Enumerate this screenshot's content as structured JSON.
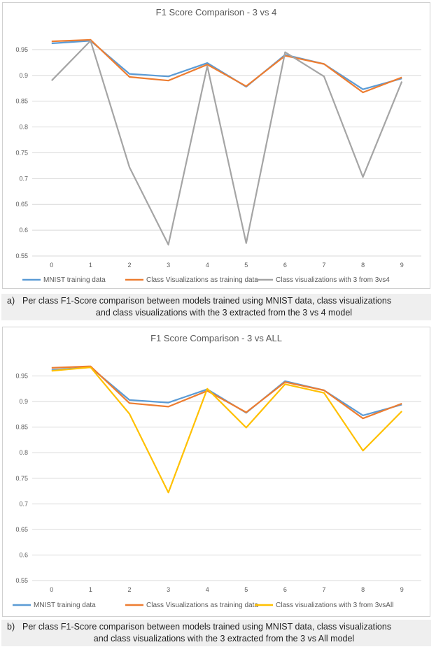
{
  "chart_data": [
    {
      "type": "line",
      "title": "F1 Score Comparison - 3 vs 4",
      "categories": [
        "0",
        "1",
        "2",
        "3",
        "4",
        "5",
        "6",
        "7",
        "8",
        "9"
      ],
      "ylim": [
        0.55,
        1.0
      ],
      "yticks": [
        "0.55",
        "0.6",
        "0.65",
        "0.7",
        "0.75",
        "0.8",
        "0.85",
        "0.9",
        "0.95"
      ],
      "series": [
        {
          "name": "MNIST training data",
          "color": "#5b9bd5",
          "values": [
            0.962,
            0.967,
            0.903,
            0.898,
            0.924,
            0.878,
            0.94,
            0.922,
            0.873,
            0.894
          ]
        },
        {
          "name": "Class Visualizations as training data",
          "color": "#ed7d31",
          "values": [
            0.966,
            0.969,
            0.897,
            0.89,
            0.921,
            0.879,
            0.938,
            0.922,
            0.867,
            0.896
          ]
        },
        {
          "name": "Class visualizations with 3 from 3vs4",
          "color": "#a5a5a5",
          "values": [
            0.89,
            0.967,
            0.722,
            0.572,
            0.918,
            0.575,
            0.945,
            0.898,
            0.703,
            0.888
          ]
        }
      ],
      "caption_prefix": "a)",
      "caption_line1": "Per class F1-Score comparison between models trained using MNIST data, class visualizations",
      "caption_line2": "and class visualizations with the 3 extracted from the 3 vs 4 model"
    },
    {
      "type": "line",
      "title": "F1 Score Comparison - 3 vs ALL",
      "categories": [
        "0",
        "1",
        "2",
        "3",
        "4",
        "5",
        "6",
        "7",
        "8",
        "9"
      ],
      "ylim": [
        0.55,
        1.0
      ],
      "yticks": [
        "0.55",
        "0.6",
        "0.65",
        "0.7",
        "0.75",
        "0.8",
        "0.85",
        "0.9",
        "0.95"
      ],
      "series": [
        {
          "name": "MNIST training data",
          "color": "#5b9bd5",
          "values": [
            0.962,
            0.967,
            0.903,
            0.898,
            0.924,
            0.878,
            0.94,
            0.922,
            0.873,
            0.894
          ]
        },
        {
          "name": "Class Visualizations as training data",
          "color": "#ed7d31",
          "values": [
            0.966,
            0.969,
            0.897,
            0.89,
            0.921,
            0.879,
            0.938,
            0.922,
            0.867,
            0.896
          ]
        },
        {
          "name": "Class visualizations with 3 from 3vsAll",
          "color": "#ffc000",
          "values": [
            0.96,
            0.967,
            0.876,
            0.722,
            0.925,
            0.849,
            0.934,
            0.917,
            0.804,
            0.881
          ]
        }
      ],
      "caption_prefix": "b)",
      "caption_line1": "Per class F1-Score comparison between models trained using MNIST data, class visualizations",
      "caption_line2": "and class visualizations with the 3 extracted from the 3 vs All model"
    }
  ]
}
